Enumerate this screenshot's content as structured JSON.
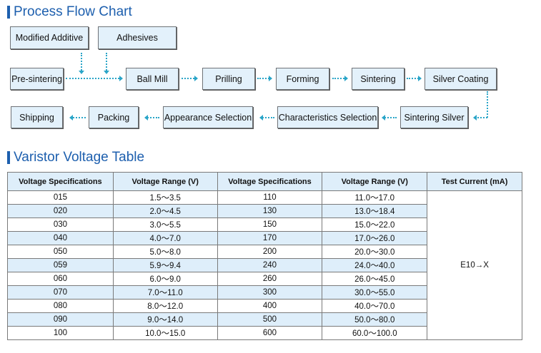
{
  "flow": {
    "title": "Process Flow Chart",
    "boxes": {
      "modified_additive": "Modified Additive",
      "adhesives": "Adhesives",
      "pre_sintering": "Pre-sintering",
      "ball_mill": "Ball Mill",
      "prilling": "Prilling",
      "forming": "Forming",
      "sintering": "Sintering",
      "silver_coating": "Silver Coating",
      "sintering_silver": "Sintering Silver",
      "characteristics_selection": "Characteristics Selection",
      "appearance_selection": "Appearance Selection",
      "packing": "Packing",
      "shipping": "Shipping"
    }
  },
  "table": {
    "title": "Varistor Voltage Table",
    "headers": [
      "Voltage Specifications",
      "Voltage Range (V)",
      "Voltage Specifications",
      "Voltage Range (V)",
      "Test Current (mA)"
    ],
    "rows": [
      [
        "015",
        "1.5～3.5",
        "110",
        "11.0～17.0"
      ],
      [
        "020",
        "2.0～4.5",
        "130",
        "13.0～18.4"
      ],
      [
        "030",
        "3.0～5.5",
        "150",
        "15.0～22.0"
      ],
      [
        "040",
        "4.0～7.0",
        "170",
        "17.0～26.0"
      ],
      [
        "050",
        "5.0～8.0",
        "200",
        "20.0～30.0"
      ],
      [
        "059",
        "5.9～9.4",
        "240",
        "24.0～40.0"
      ],
      [
        "060",
        "6.0～9.0",
        "260",
        "26.0～45.0"
      ],
      [
        "070",
        "7.0～11.0",
        "300",
        "30.0～55.0"
      ],
      [
        "080",
        "8.0～12.0",
        "400",
        "40.0～70.0"
      ],
      [
        "090",
        "9.0～14.0",
        "500",
        "50.0～80.0"
      ],
      [
        "100",
        "10.0～15.0",
        "600",
        "60.0～100.0"
      ]
    ],
    "test_current": "E10→X"
  }
}
